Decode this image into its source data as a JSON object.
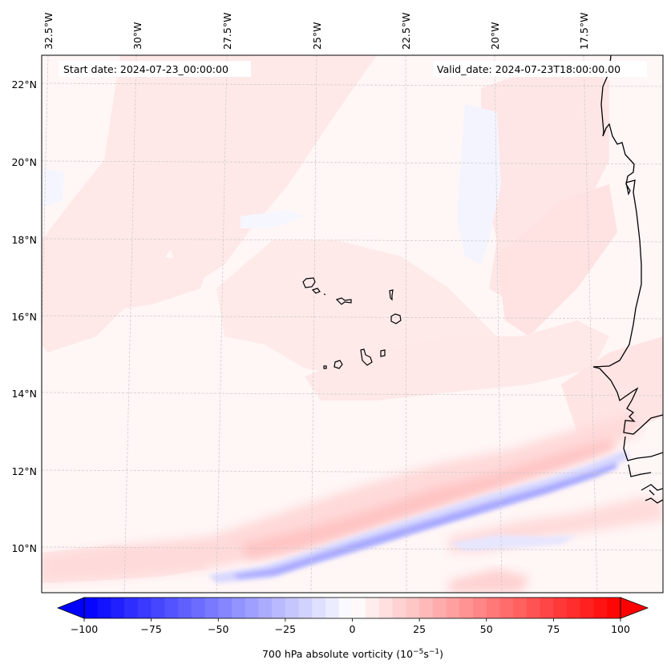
{
  "figure": {
    "type": "map",
    "projection": "lambert conformal (tilted graticule)",
    "start_date_label": "Start date: 2024-07-23_00:00:00",
    "valid_date_label": "Valid_date: 2024-07-23T18:00:00.00"
  },
  "chart_data": {
    "type": "heatmap",
    "title": "",
    "variable": "700 hPa absolute vorticity",
    "units": "10^-5 s^-1",
    "colorbar": {
      "label_prefix": "700 hPa absolute vorticity (10",
      "label_exp1": "−5",
      "label_mid": "s",
      "label_exp2": "−1",
      "label_suffix": ")",
      "colormap": "bwr",
      "vmin": -100,
      "vmax": 100,
      "level_step": 5,
      "extend": "both",
      "ticks": [
        -100,
        -75,
        -50,
        -25,
        0,
        25,
        50,
        75,
        100
      ],
      "tick_labels": [
        "−100",
        "−75",
        "−50",
        "−25",
        "0",
        "25",
        "50",
        "75",
        "100"
      ],
      "orientation": "horizontal",
      "placement": "bottom"
    },
    "longitude_ticks": [
      "32.5°W",
      "30°W",
      "27.5°W",
      "25°W",
      "22.5°W",
      "20°W",
      "17.5°W"
    ],
    "longitude_values": [
      -32.5,
      -30,
      -27.5,
      -25,
      -22.5,
      -20,
      -17.5
    ],
    "latitude_ticks": [
      "22°N",
      "20°N",
      "18°N",
      "16°N",
      "14°N",
      "12°N",
      "10°N"
    ],
    "latitude_values": [
      22,
      20,
      18,
      16,
      14,
      12,
      10
    ],
    "extent": {
      "lon_min": -32.6,
      "lon_max": -15.6,
      "lat_min": 8.9,
      "lat_max": 22.8
    },
    "grid": true,
    "features": [
      {
        "name": "Cape Verde Islands",
        "type": "coastline"
      },
      {
        "name": "West African coast (Mauritania, Senegal, Guinea-Bissau)",
        "type": "coastline"
      }
    ],
    "field_features": [
      {
        "description": "background weakly positive vorticity",
        "value_range": [
          0,
          10
        ]
      },
      {
        "description": "SW-NE oriented negative vorticity band from ~9.5N 28W to ~12.5N 17W",
        "value_range": [
          -40,
          -10
        ]
      },
      {
        "description": "positive vorticity belt north of negative band",
        "value_range": [
          10,
          30
        ]
      },
      {
        "description": "broad weak positive streak across northwest of domain",
        "value_range": [
          5,
          15
        ]
      }
    ]
  }
}
